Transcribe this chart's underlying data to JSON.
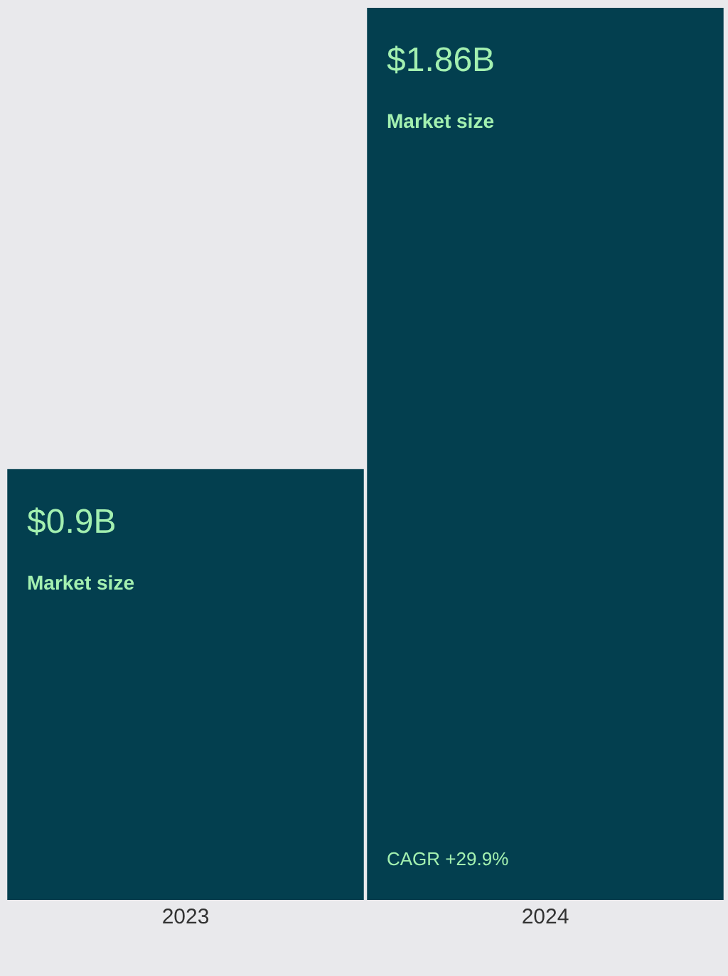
{
  "chart_data": {
    "type": "bar",
    "categories": [
      "2023",
      "2024"
    ],
    "values": [
      0.9,
      1.86
    ],
    "color": "#033f4f",
    "value_labels": [
      "$0.9B",
      "$1.86B"
    ],
    "ylim": [
      0,
      1.86
    ],
    "tick_labels": "x",
    "grid": false,
    "legend": false,
    "annotations": [
      "Market size",
      "Market size",
      {
        "text": "CAGR +29.9%",
        "x": "2024",
        "y": 0
      }
    ]
  }
}
